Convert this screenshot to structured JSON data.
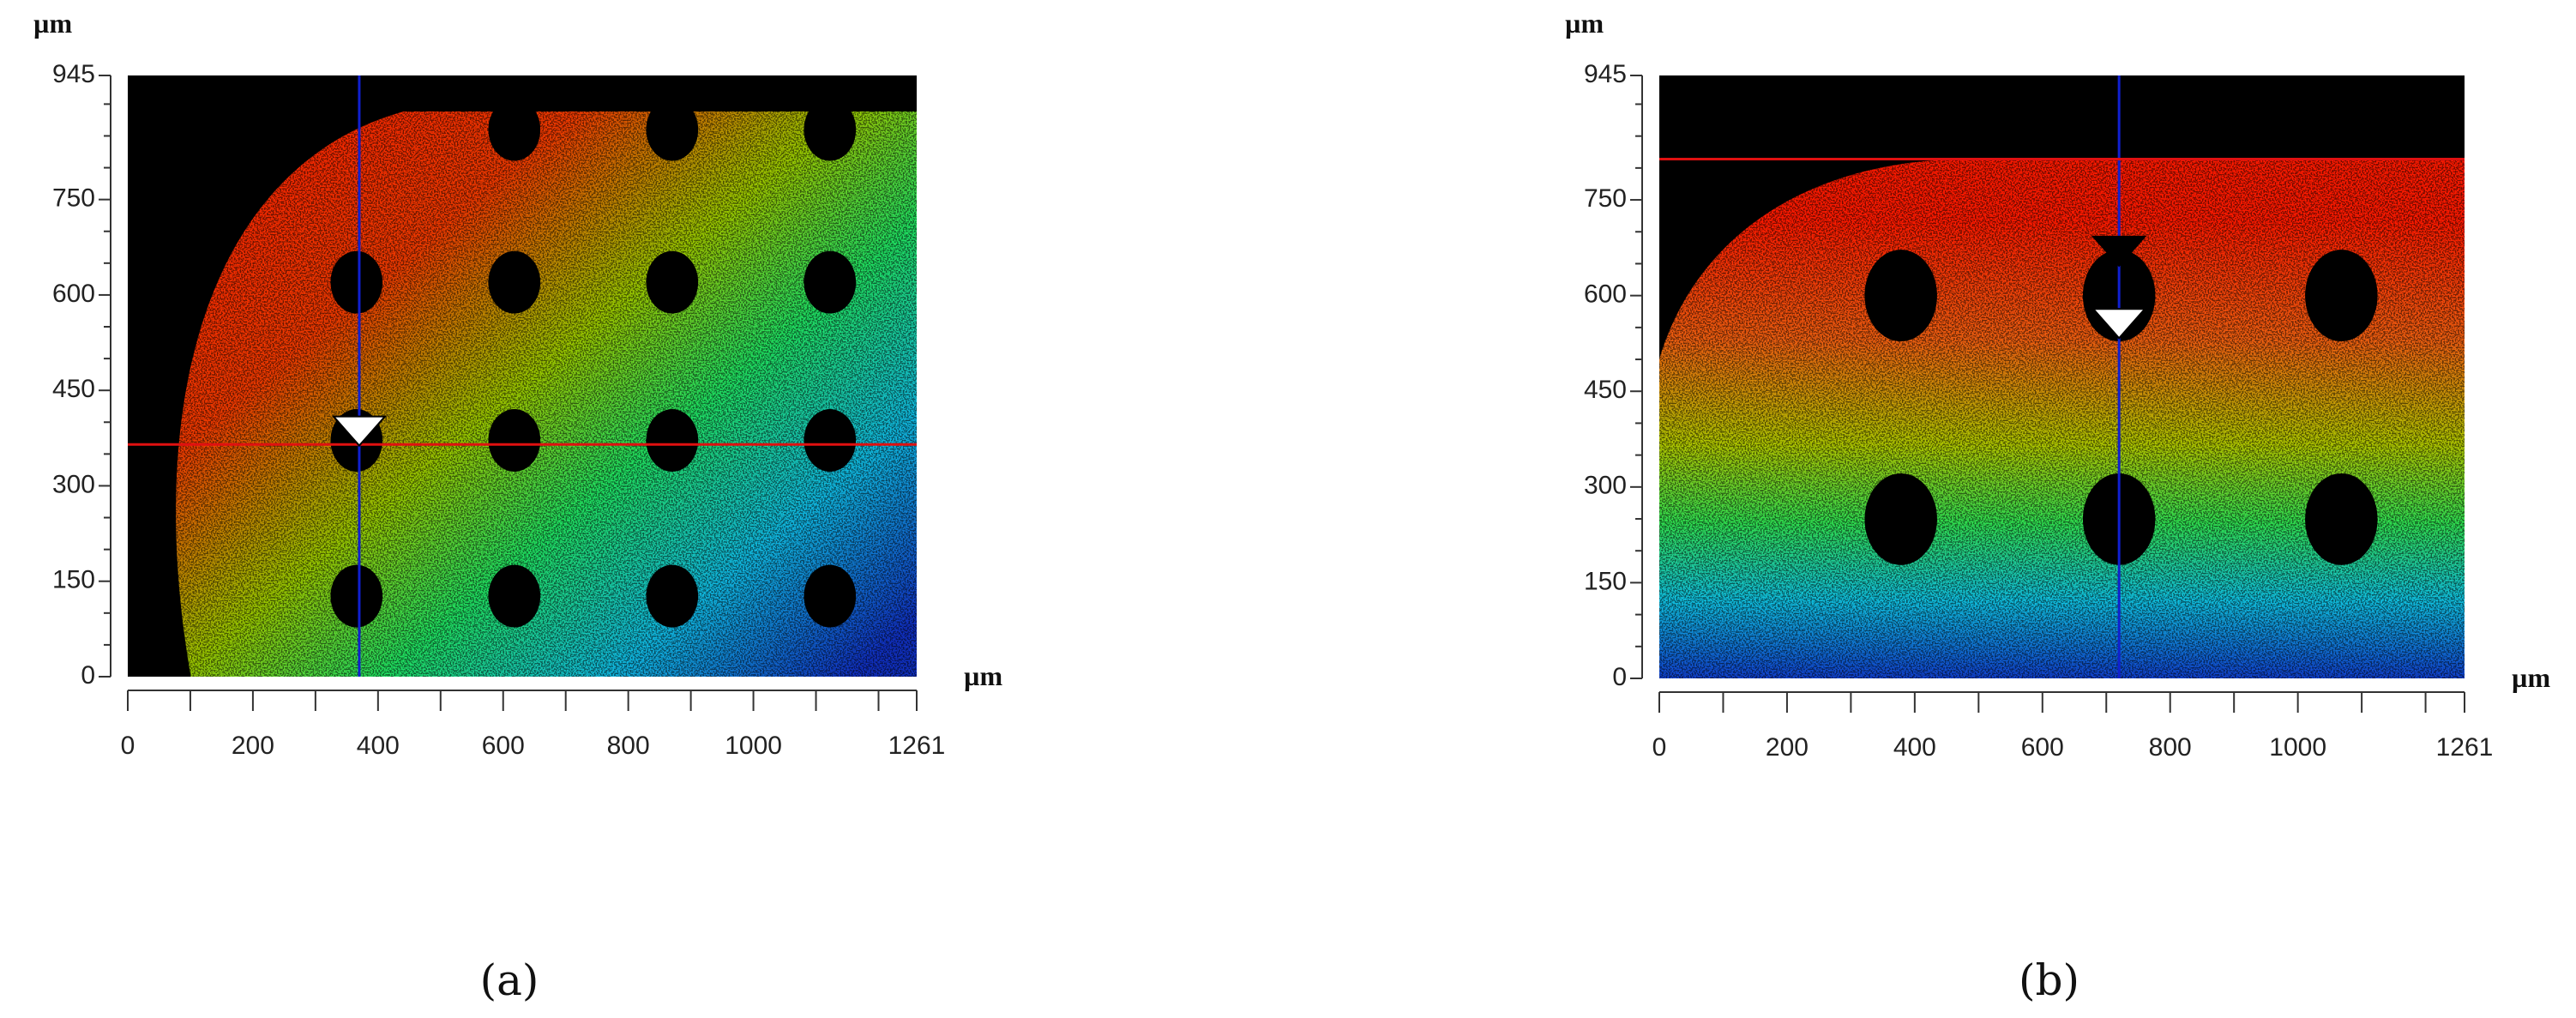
{
  "chart_data": [
    {
      "type": "heatmap",
      "caption": "(a)",
      "x_label": "µm",
      "y_label": "µm",
      "xlim": [
        0,
        1261
      ],
      "ylim": [
        0,
        945
      ],
      "xticks": [
        0,
        200,
        400,
        600,
        800,
        1000,
        1261
      ],
      "xticks_minor": [
        100,
        300,
        500,
        700,
        900,
        1100,
        1200
      ],
      "yticks": [
        0,
        150,
        300,
        450,
        600,
        750,
        945
      ],
      "yticks_minor": [
        50,
        100,
        200,
        250,
        350,
        400,
        500,
        550,
        650,
        700,
        800,
        850,
        900
      ],
      "cursor_x": 370,
      "cursor_y": 365
    },
    {
      "type": "heatmap",
      "caption": "(b)",
      "x_label": "µm",
      "y_label": "µm",
      "xlim": [
        0,
        1261
      ],
      "ylim": [
        0,
        945
      ],
      "xticks": [
        0,
        200,
        400,
        600,
        800,
        1000,
        1261
      ],
      "xticks_minor": [
        100,
        300,
        500,
        700,
        900,
        1100,
        1200
      ],
      "yticks": [
        0,
        150,
        300,
        450,
        600,
        750,
        945
      ],
      "yticks_minor": [
        50,
        100,
        200,
        250,
        350,
        400,
        500,
        550,
        650,
        700,
        800,
        850,
        900
      ],
      "cursor_x": 720,
      "cursor_y": 814
    }
  ]
}
